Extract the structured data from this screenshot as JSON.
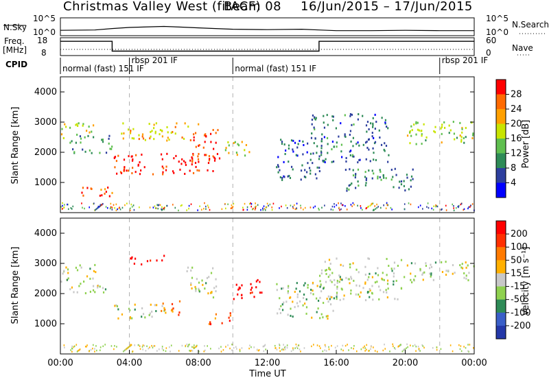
{
  "chart_data": [
    {
      "type": "line",
      "panel": "top-summary",
      "title": "Christmas Valley West (fitACF)",
      "beam": "Beam 08",
      "date_range": "16/Jun/2015 – 17/Jun/2015",
      "rows": [
        {
          "left_label": "N.Sky",
          "right_label": "N.Search",
          "left_ticks": [
            "10^5",
            "10^0"
          ],
          "right_ticks": [
            "10^5",
            "10^0"
          ],
          "x": [
            0,
            2,
            3,
            4,
            6,
            7,
            8,
            9,
            10,
            12,
            14,
            15,
            16,
            18,
            20,
            22,
            24
          ],
          "values": [
            1.5,
            1.6,
            2.0,
            2.3,
            2.6,
            2.4,
            2.2,
            2.0,
            1.8,
            1.7,
            1.8,
            1.6,
            1.4,
            1.4,
            1.5,
            1.4,
            1.4
          ]
        },
        {
          "left_label": "Freq.\n[MHz]",
          "right_label": "Nave",
          "left_ticks": [
            "18",
            "8"
          ],
          "right_ticks": [
            "60",
            "0"
          ],
          "x": [
            0,
            3,
            3,
            15,
            15,
            24
          ],
          "values": [
            16,
            16,
            10.5,
            10.5,
            16,
            16
          ]
        }
      ],
      "cpid_label": "CPID",
      "cpid_segments": [
        {
          "start": 0,
          "end": 4,
          "label": "normal (fast) 151 IF"
        },
        {
          "start": 4,
          "end": 10,
          "label": "rbsp 201 IF"
        },
        {
          "start": 10,
          "end": 22,
          "label": "normal (fast) 151 IF"
        },
        {
          "start": 22,
          "end": 24,
          "label": "rbsp 201 IF"
        }
      ]
    },
    {
      "type": "heatmap",
      "panel": "power",
      "ylabel": "Slant Range [km]",
      "ylim": [
        0,
        4500
      ],
      "yticks": [
        1000,
        2000,
        3000,
        4000
      ],
      "xlim": [
        0,
        24
      ],
      "colorbar": {
        "label": "Power [dB]",
        "ticks": [
          "4",
          "8",
          "12",
          "16",
          "20",
          "24",
          "28"
        ],
        "colors": [
          "#0000ff",
          "#2d3f9e",
          "#2e8b57",
          "#5fbf4f",
          "#c8e400",
          "#ffa000",
          "#ff6a00",
          "#ff0000"
        ]
      },
      "regions": [
        {
          "t0": 0.0,
          "t1": 2.0,
          "r0": 2500,
          "r1": 3000,
          "level": 0.55
        },
        {
          "t0": 0.5,
          "t1": 3.0,
          "r0": 2000,
          "r1": 2600,
          "level": 0.35
        },
        {
          "t0": 1.0,
          "t1": 3.0,
          "r0": 500,
          "r1": 900,
          "level": 0.85
        },
        {
          "t0": 3.0,
          "t1": 9.0,
          "r0": 1300,
          "r1": 2000,
          "level": 0.95
        },
        {
          "t0": 3.5,
          "t1": 8.0,
          "r0": 2400,
          "r1": 3000,
          "level": 0.65
        },
        {
          "t0": 7.5,
          "t1": 9.2,
          "r0": 1800,
          "r1": 2800,
          "level": 0.9
        },
        {
          "t0": 9.5,
          "t1": 11.0,
          "r0": 1900,
          "r1": 2500,
          "level": 0.55
        },
        {
          "t0": 12.5,
          "t1": 15.0,
          "r0": 1100,
          "r1": 2500,
          "level": 0.2
        },
        {
          "t0": 14.5,
          "t1": 19.0,
          "r0": 1700,
          "r1": 3300,
          "level": 0.25
        },
        {
          "t0": 16.5,
          "t1": 20.5,
          "r0": 700,
          "r1": 1500,
          "level": 0.3
        },
        {
          "t0": 20.0,
          "t1": 24.0,
          "r0": 2300,
          "r1": 3100,
          "level": 0.5
        }
      ]
    },
    {
      "type": "heatmap",
      "panel": "velocity",
      "ylabel": "Slant Range [km]",
      "ylim": [
        0,
        4500
      ],
      "yticks": [
        1000,
        2000,
        3000,
        4000
      ],
      "xlim": [
        0,
        24
      ],
      "xticks": [
        "00:00",
        "04:00",
        "08:00",
        "12:00",
        "16:00",
        "20:00",
        "00:00"
      ],
      "xlabel": "Time UT",
      "colorbar": {
        "label": "Velocity [m s⁻¹]",
        "ticks": [
          "200",
          "100",
          "50",
          "15",
          "-15",
          "-50",
          "-100",
          "-200"
        ],
        "colors": [
          "#2438a8",
          "#3a5fc8",
          "#2e8b57",
          "#8fd14f",
          "#c8c8c8",
          "#ffb000",
          "#ff7a00",
          "#ff3000",
          "#ff0000"
        ]
      },
      "regions": [
        {
          "t0": 0.0,
          "t1": 2.0,
          "r0": 2400,
          "r1": 3000,
          "level": 0.45
        },
        {
          "t0": 0.5,
          "t1": 3.0,
          "r0": 2000,
          "r1": 2400,
          "level": 0.45
        },
        {
          "t0": 3.0,
          "t1": 6.0,
          "r0": 1200,
          "r1": 1700,
          "level": 0.45
        },
        {
          "t0": 5.8,
          "t1": 7.0,
          "r0": 1300,
          "r1": 1900,
          "level": 0.7
        },
        {
          "t0": 4.0,
          "t1": 6.0,
          "r0": 3000,
          "r1": 3300,
          "level": 0.95
        },
        {
          "t0": 7.2,
          "t1": 9.0,
          "r0": 1900,
          "r1": 2900,
          "level": 0.45
        },
        {
          "t0": 10.0,
          "t1": 11.8,
          "r0": 1800,
          "r1": 2500,
          "level": 0.98
        },
        {
          "t0": 8.5,
          "t1": 10.0,
          "r0": 1000,
          "r1": 1400,
          "level": 0.8
        },
        {
          "t0": 12.5,
          "t1": 16.0,
          "r0": 1200,
          "r1": 2400,
          "level": 0.45
        },
        {
          "t0": 15.0,
          "t1": 20.0,
          "r0": 1800,
          "r1": 3200,
          "level": 0.45
        },
        {
          "t0": 20.0,
          "t1": 24.0,
          "r0": 2400,
          "r1": 3100,
          "level": 0.45
        }
      ]
    }
  ]
}
